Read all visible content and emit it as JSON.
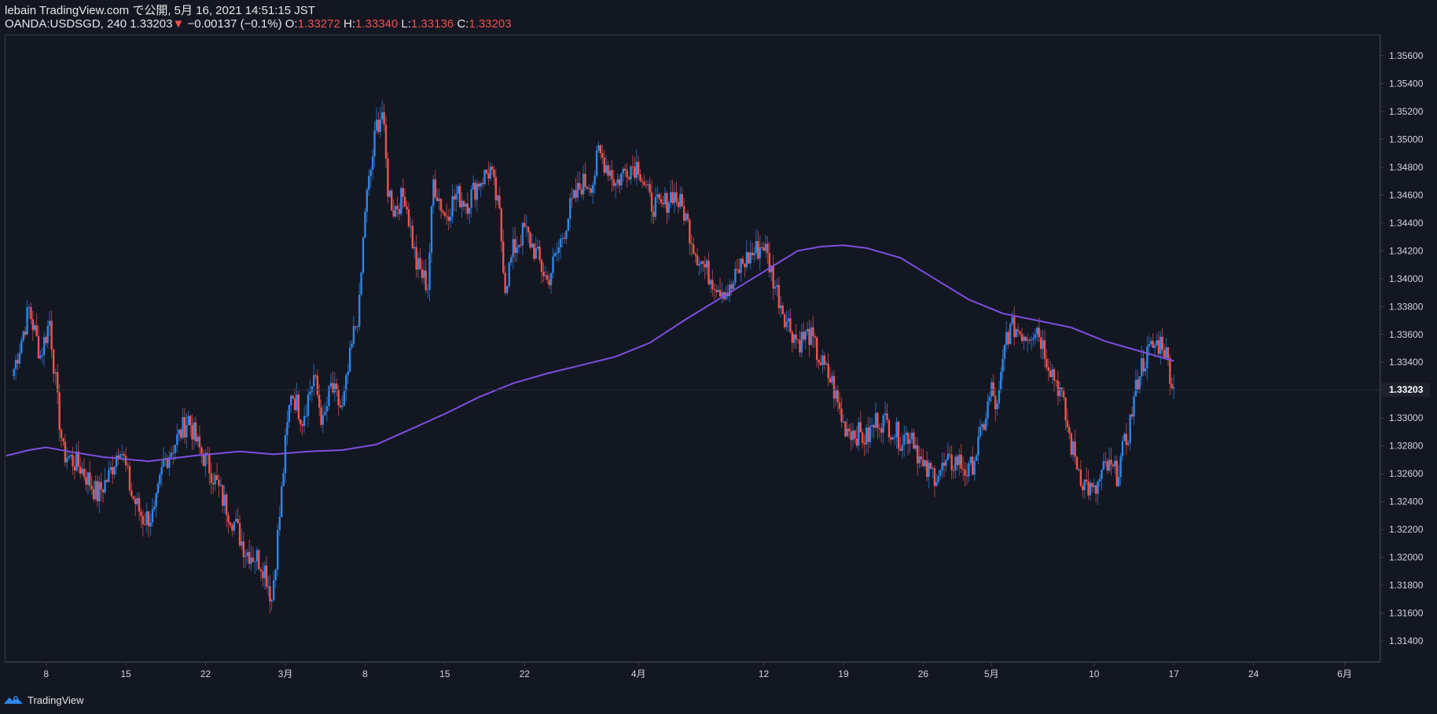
{
  "header": {
    "line1": "lebain TradingView.com で公開, 5月 16, 2021 14:51:15 JST",
    "symbol": "OANDA:USDSGD, 240",
    "last": "1.33203",
    "change_arrow": "▼",
    "change": "−0.00137 (−0.1%)",
    "o_label": "O:",
    "o_value": "1.33272",
    "h_label": "H:",
    "h_value": "1.33340",
    "l_label": "L:",
    "l_value": "1.33136",
    "c_label": "C:",
    "c_value": "1.33203"
  },
  "footer": {
    "brand": "TradingView",
    "logo_icon": "tradingview-logo-icon"
  },
  "colors": {
    "background": "#131722",
    "up": "#2f86e8",
    "down": "#ef5350",
    "ma": "#7e4fe0",
    "axis_text": "#d1d4dc",
    "border": "#3a3e4a"
  },
  "chart_data": {
    "type": "candlestick",
    "symbol": "OANDA:USDSGD",
    "interval": "240",
    "y_axis": {
      "side": "right",
      "ylim": [
        1.3126,
        1.3574
      ],
      "ticks": [
        "1.35600",
        "1.35400",
        "1.35200",
        "1.35000",
        "1.34800",
        "1.34600",
        "1.34400",
        "1.34200",
        "1.34000",
        "1.33800",
        "1.33600",
        "1.33400",
        "1.33200",
        "1.33000",
        "1.32800",
        "1.32600",
        "1.32400",
        "1.32200",
        "1.32000",
        "1.31800",
        "1.31600",
        "1.31400"
      ],
      "last_price_label": "1.33203"
    },
    "x_axis": {
      "labels": [
        {
          "label": "8",
          "day": 8
        },
        {
          "label": "15",
          "day": 15
        },
        {
          "label": "22",
          "day": 22
        },
        {
          "label": "3月",
          "day": 29
        },
        {
          "label": "8",
          "day": 36
        },
        {
          "label": "15",
          "day": 43
        },
        {
          "label": "22",
          "day": 50
        },
        {
          "label": "4月",
          "day": 60
        },
        {
          "label": "12",
          "day": 71
        },
        {
          "label": "19",
          "day": 78
        },
        {
          "label": "26",
          "day": 85
        },
        {
          "label": "5月",
          "day": 91
        },
        {
          "label": "10",
          "day": 100
        },
        {
          "label": "17",
          "day": 107
        },
        {
          "label": "24",
          "day": 114
        },
        {
          "label": "6月",
          "day": 122
        }
      ],
      "range_days": [
        4.5,
        125
      ]
    },
    "close_series": [
      [
        5,
        1.333
      ],
      [
        6.5,
        1.3378
      ],
      [
        7.5,
        1.3345
      ],
      [
        8.3,
        1.337
      ],
      [
        9,
        1.331
      ],
      [
        9.5,
        1.3275
      ],
      [
        11,
        1.3265
      ],
      [
        12.5,
        1.3245
      ],
      [
        13.5,
        1.3258
      ],
      [
        14.5,
        1.3282
      ],
      [
        15.5,
        1.3245
      ],
      [
        16.5,
        1.3228
      ],
      [
        17.5,
        1.323
      ],
      [
        18.3,
        1.3268
      ],
      [
        19.5,
        1.3285
      ],
      [
        20.5,
        1.33
      ],
      [
        21.3,
        1.328
      ],
      [
        22.5,
        1.3262
      ],
      [
        23.5,
        1.3242
      ],
      [
        24.5,
        1.3225
      ],
      [
        25.5,
        1.3205
      ],
      [
        26.5,
        1.32
      ],
      [
        27.2,
        1.3192
      ],
      [
        27.8,
        1.317
      ],
      [
        28.5,
        1.323
      ],
      [
        29,
        1.328
      ],
      [
        29.5,
        1.332
      ],
      [
        30.5,
        1.33
      ],
      [
        31.5,
        1.333
      ],
      [
        32.3,
        1.3295
      ],
      [
        33,
        1.3322
      ],
      [
        34,
        1.3305
      ],
      [
        35,
        1.336
      ],
      [
        35.5,
        1.338
      ],
      [
        36,
        1.345
      ],
      [
        36.5,
        1.3478
      ],
      [
        37,
        1.351
      ],
      [
        37.5,
        1.352
      ],
      [
        38,
        1.3465
      ],
      [
        38.5,
        1.345
      ],
      [
        39.5,
        1.346
      ],
      [
        40.5,
        1.341
      ],
      [
        41.5,
        1.3395
      ],
      [
        42,
        1.347
      ],
      [
        43,
        1.3445
      ],
      [
        44,
        1.346
      ],
      [
        45,
        1.3455
      ],
      [
        46,
        1.347
      ],
      [
        47,
        1.3478
      ],
      [
        47.8,
        1.3445
      ],
      [
        48.3,
        1.3395
      ],
      [
        49,
        1.342
      ],
      [
        50,
        1.3435
      ],
      [
        51,
        1.3418
      ],
      [
        52,
        1.3398
      ],
      [
        53,
        1.3422
      ],
      [
        54,
        1.345
      ],
      [
        55,
        1.3468
      ],
      [
        56,
        1.347
      ],
      [
        56.5,
        1.349
      ],
      [
        57.5,
        1.3478
      ],
      [
        58,
        1.3468
      ],
      [
        59,
        1.348
      ],
      [
        60,
        1.3482
      ],
      [
        61,
        1.3455
      ],
      [
        62,
        1.345
      ],
      [
        63,
        1.3462
      ],
      [
        64,
        1.3448
      ],
      [
        65,
        1.342
      ],
      [
        66,
        1.3405
      ],
      [
        67,
        1.3395
      ],
      [
        68,
        1.339
      ],
      [
        69,
        1.341
      ],
      [
        70,
        1.3418
      ],
      [
        71,
        1.3425
      ],
      [
        71.5,
        1.341
      ],
      [
        72,
        1.3395
      ],
      [
        73,
        1.337
      ],
      [
        74,
        1.3355
      ],
      [
        75,
        1.336
      ],
      [
        76,
        1.334
      ],
      [
        77,
        1.3325
      ],
      [
        78,
        1.3295
      ],
      [
        79,
        1.329
      ],
      [
        80,
        1.3285
      ],
      [
        81,
        1.33
      ],
      [
        82,
        1.3295
      ],
      [
        83,
        1.3285
      ],
      [
        84,
        1.329
      ],
      [
        85,
        1.3262
      ],
      [
        86,
        1.326
      ],
      [
        87,
        1.3265
      ],
      [
        88,
        1.327
      ],
      [
        89,
        1.326
      ],
      [
        90,
        1.3285
      ],
      [
        91,
        1.332
      ],
      [
        91.5,
        1.3305
      ],
      [
        92.3,
        1.336
      ],
      [
        93,
        1.3365
      ],
      [
        94,
        1.336
      ],
      [
        95,
        1.3365
      ],
      [
        96,
        1.334
      ],
      [
        97,
        1.332
      ],
      [
        98,
        1.328
      ],
      [
        99,
        1.3255
      ],
      [
        100,
        1.3245
      ],
      [
        101,
        1.3265
      ],
      [
        102,
        1.326
      ],
      [
        103,
        1.329
      ],
      [
        104,
        1.3335
      ],
      [
        105,
        1.335
      ],
      [
        106,
        1.3355
      ],
      [
        106.5,
        1.334
      ],
      [
        107,
        1.332
      ]
    ],
    "moving_average": {
      "color": "#7e4fe0",
      "points": [
        [
          4.5,
          1.3273
        ],
        [
          6.5,
          1.3277
        ],
        [
          8,
          1.3279
        ],
        [
          10,
          1.3276
        ],
        [
          13,
          1.3272
        ],
        [
          17,
          1.3269
        ],
        [
          21,
          1.3273
        ],
        [
          25,
          1.3276
        ],
        [
          28,
          1.3274
        ],
        [
          31,
          1.3276
        ],
        [
          34,
          1.3277
        ],
        [
          37,
          1.3281
        ],
        [
          40,
          1.3292
        ],
        [
          43,
          1.3303
        ],
        [
          46,
          1.3315
        ],
        [
          49,
          1.3325
        ],
        [
          52,
          1.3332
        ],
        [
          55,
          1.3338
        ],
        [
          58,
          1.3344
        ],
        [
          61,
          1.3354
        ],
        [
          64,
          1.337
        ],
        [
          67,
          1.3385
        ],
        [
          70,
          1.34
        ],
        [
          72,
          1.341
        ],
        [
          74,
          1.342
        ],
        [
          76,
          1.3423
        ],
        [
          78,
          1.3424
        ],
        [
          80,
          1.3422
        ],
        [
          83,
          1.3415
        ],
        [
          86,
          1.34
        ],
        [
          89,
          1.3385
        ],
        [
          92,
          1.3375
        ],
        [
          95,
          1.337
        ],
        [
          98,
          1.3365
        ],
        [
          101,
          1.3355
        ],
        [
          104,
          1.3348
        ],
        [
          107,
          1.3341
        ]
      ]
    }
  }
}
